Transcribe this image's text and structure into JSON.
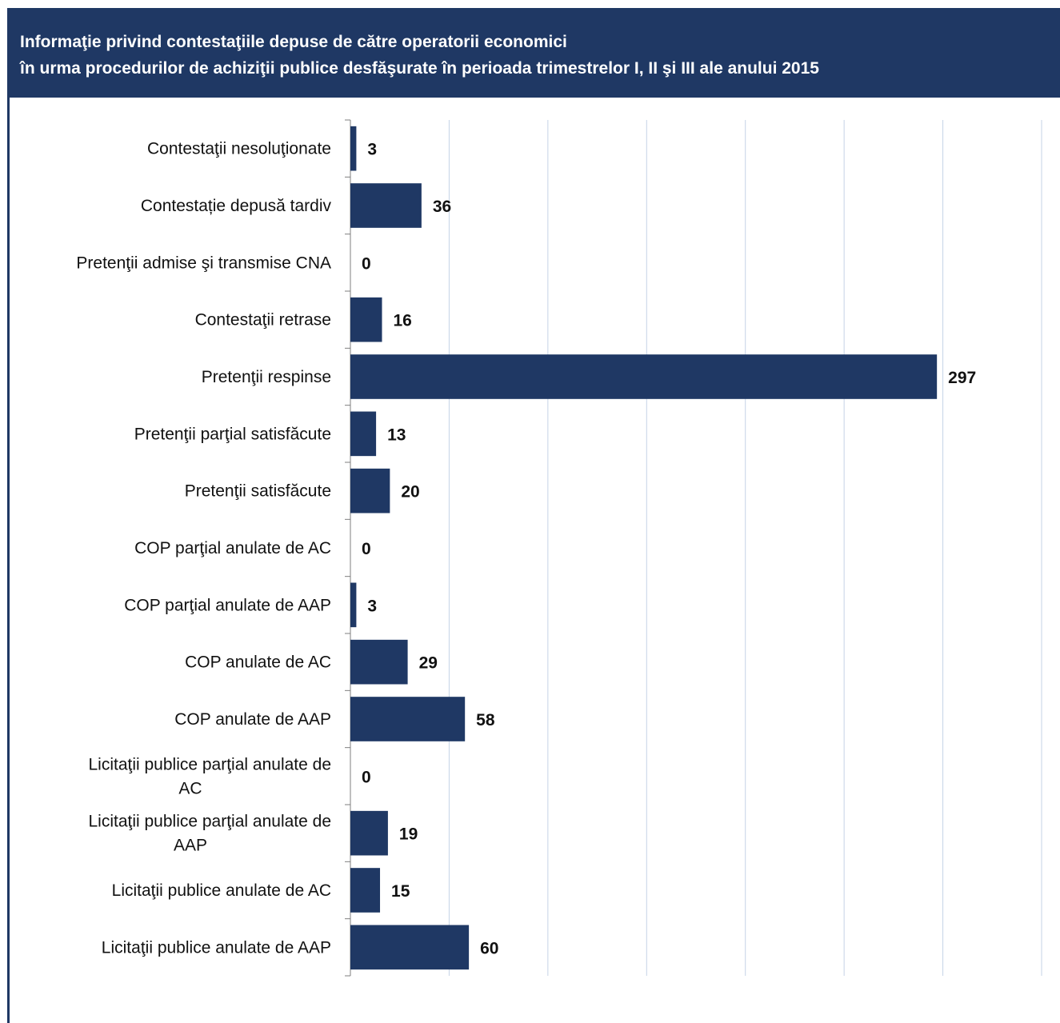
{
  "header": {
    "title_line1": "Informaţie privind contestaţiile depuse de către operatorii economici",
    "title_line2": "în urma procedurilor de achiziţii publice desfăşurate în perioada trimestrelor I, II şi III ale anului 2015"
  },
  "colors": {
    "accent": "#1f3864",
    "bar": "#1f3864",
    "grid": "#c5d3e6",
    "axis": "#7f7f7f"
  },
  "chart_data": {
    "type": "bar",
    "orientation": "horizontal",
    "title": "",
    "xlabel": "",
    "ylabel": "",
    "xlim": [
      0,
      350
    ],
    "grid": true,
    "legend": "none",
    "categories": [
      "Contestaţii nesoluţionate",
      "Contestație depusă tardiv",
      "Pretenţii admise şi transmise CNA",
      "Contestaţii retrase",
      "Pretenţii respinse",
      "Pretenţii parţial satisfăcute",
      "Pretenţii satisfăcute",
      "COP parţial anulate de AC",
      "COP parţial anulate de AAP",
      "COP anulate de AC",
      "COP anulate de AAP",
      "Licitaţii publice parţial anulate de AC",
      "Licitaţii publice parţial anulate de AAP",
      "Licitaţii publice anulate de AC",
      "Licitaţii publice anulate de AAP"
    ],
    "values": [
      3,
      36,
      0,
      16,
      297,
      13,
      20,
      0,
      3,
      29,
      58,
      0,
      19,
      15,
      60
    ]
  }
}
